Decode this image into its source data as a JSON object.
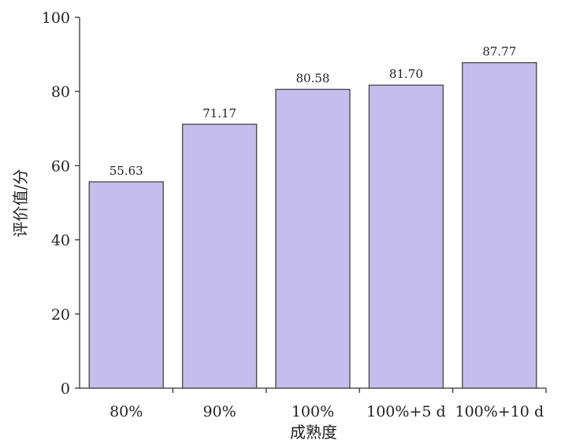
{
  "chart_data": {
    "type": "bar",
    "categories": [
      "80%",
      "90%",
      "100%",
      "100%+5 d",
      "100%+10 d"
    ],
    "values": [
      55.63,
      71.17,
      80.58,
      81.7,
      87.77
    ],
    "value_labels": [
      "55.63",
      "71.17",
      "80.58",
      "81.70",
      "87.77"
    ],
    "title": "",
    "xlabel": "成熟度",
    "ylabel": "评价值/分",
    "ylim": [
      0,
      100
    ],
    "yticks": [
      0,
      20,
      40,
      60,
      80,
      100
    ],
    "bar_color": "#c5bdec",
    "grid": false,
    "legend": "none"
  }
}
